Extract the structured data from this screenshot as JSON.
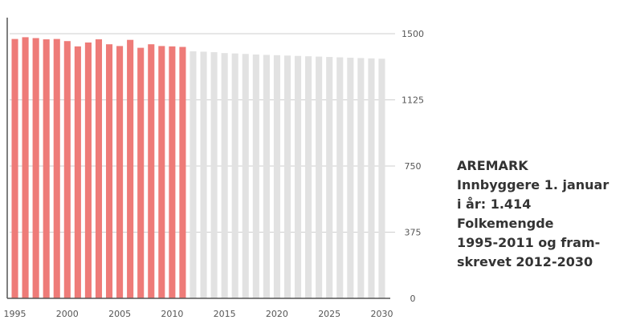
{
  "caption": {
    "title": "AREMARK",
    "line1": "Innbyggere 1. januar",
    "line2": "i år: 1.414",
    "line3": "Folkemengde",
    "line4": "1995-2011 og fram-",
    "line5": "skrevet 2012-2030"
  },
  "colors": {
    "actual": "#ee7b78",
    "projected": "#e2e2e2",
    "axis": "#555555",
    "grid": "#cfcfcf"
  },
  "chart_data": {
    "type": "bar",
    "title": "",
    "xlabel": "",
    "ylabel": "",
    "ylim": [
      0,
      1500
    ],
    "y_ticks": [
      0,
      375,
      750,
      1125,
      1500
    ],
    "y_tick_labels": [
      "0",
      "375",
      "750",
      "1125",
      "1500"
    ],
    "x_tick_labels": [
      "1995",
      "2000",
      "2005",
      "2010",
      "2015",
      "2020",
      "2025",
      "2030"
    ],
    "grid": true,
    "categories": [
      "1995",
      "1996",
      "1997",
      "1998",
      "1999",
      "2000",
      "2001",
      "2002",
      "2003",
      "2004",
      "2005",
      "2006",
      "2007",
      "2008",
      "2009",
      "2010",
      "2011",
      "2012",
      "2013",
      "2014",
      "2015",
      "2016",
      "2017",
      "2018",
      "2019",
      "2020",
      "2021",
      "2022",
      "2023",
      "2024",
      "2025",
      "2026",
      "2027",
      "2028",
      "2029",
      "2030"
    ],
    "series": [
      {
        "values": [
          1470,
          1480,
          1475,
          1468,
          1470,
          1458,
          1428,
          1450,
          1468,
          1440,
          1430,
          1465,
          1420,
          1440,
          1430,
          1428,
          1425,
          null,
          null,
          null,
          null,
          null,
          null,
          null,
          null,
          null,
          null,
          null,
          null,
          null,
          null,
          null,
          null,
          null,
          null,
          null
        ]
      },
      {
        "values": [
          null,
          null,
          null,
          null,
          null,
          null,
          null,
          null,
          null,
          null,
          null,
          null,
          null,
          null,
          null,
          null,
          null,
          1400,
          1398,
          1395,
          1390,
          1388,
          1385,
          1382,
          1380,
          1378,
          1376,
          1374,
          1372,
          1370,
          1368,
          1366,
          1364,
          1362,
          1360,
          1358
        ]
      }
    ]
  }
}
